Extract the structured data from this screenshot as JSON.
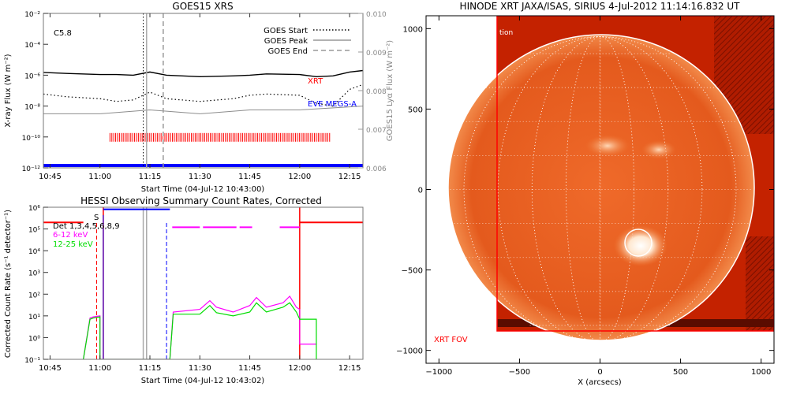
{
  "chart_data": [
    {
      "type": "line",
      "title": "GOES15 XRS",
      "xlabel": "Start Time (04-Jul-12 10:43:00)",
      "ylabel": "X-ray Flux (W m⁻²)",
      "y2label": "GOES15 Lyα Flux (W m⁻²)",
      "xticks": [
        "10:45",
        "11:00",
        "11:15",
        "11:30",
        "11:45",
        "12:00",
        "12:15"
      ],
      "yticks": [
        "10⁻¹²",
        "10⁻¹⁰",
        "10⁻⁸",
        "10⁻⁶",
        "10⁻⁴",
        "10⁻²"
      ],
      "y2ticks": [
        "0.006",
        "0.007",
        "0.008",
        "0.009",
        "0.010"
      ],
      "ylim": [
        1e-12,
        0.01
      ],
      "y2lim": [
        0.006,
        0.01
      ],
      "yscale": "log",
      "xlim": [
        "10:43",
        "12:19"
      ],
      "flare_class": "C5.8",
      "labels": {
        "xrt": "XRT",
        "eve": "EVE MEGS-A"
      },
      "legend": [
        {
          "name": "GOES Start",
          "style": "dotted"
        },
        {
          "name": "GOES Peak",
          "style": "solid"
        },
        {
          "name": "GOES End",
          "style": "dashed"
        }
      ],
      "goes_start": "11:13",
      "goes_peak": "11:14",
      "goes_end": "11:19",
      "series": [
        {
          "x": [
            "10:43",
            "10:50",
            "11:00",
            "11:05",
            "11:10",
            "11:15",
            "11:20",
            "11:30",
            "11:40",
            "11:45",
            "11:50",
            "12:00",
            "12:05",
            "12:10",
            "12:15",
            "12:19"
          ],
          "values": [
            1.5e-06,
            1.3e-06,
            1.1e-06,
            1.1e-06,
            1e-06,
            1.6e-06,
            1e-06,
            8e-07,
            9e-07,
            1e-06,
            1.2e-06,
            1.1e-06,
            8e-07,
            9e-07,
            1.6e-06,
            2e-06
          ]
        },
        {
          "x": [
            "10:43",
            "10:50",
            "11:00",
            "11:05",
            "11:10",
            "11:15",
            "11:20",
            "11:30",
            "11:40",
            "11:45",
            "11:50",
            "12:00",
            "12:05",
            "12:10",
            "12:15",
            "12:19"
          ],
          "values": [
            6e-08,
            4e-08,
            3e-08,
            2e-08,
            2.5e-08,
            8e-08,
            3e-08,
            2e-08,
            3e-08,
            5e-08,
            6e-08,
            5e-08,
            1.5e-08,
            1e-08,
            1.2e-07,
            2.5e-07
          ]
        },
        {
          "x": [
            "10:43",
            "11:00",
            "11:15",
            "11:30",
            "11:45",
            "12:00",
            "12:19"
          ],
          "values": [
            0.0074,
            0.0074,
            0.0075,
            0.0074,
            0.0075,
            0.0075,
            0.0076
          ]
        }
      ],
      "xrt_obs": [
        "11:03",
        "12:09"
      ]
    },
    {
      "type": "line",
      "title": "HESSI Observing Summary Count Rates, Corrected",
      "xlabel": "Start Time (04-Jul-12 10:43:02)",
      "ylabel": "Corrected Count Rate (s⁻¹ detector⁻¹)",
      "xticks": [
        "10:45",
        "11:00",
        "11:15",
        "11:30",
        "11:45",
        "12:00",
        "12:15"
      ],
      "yticks": [
        "10⁻¹",
        "10⁰",
        "10¹",
        "10²",
        "10³",
        "10⁴",
        "10⁵",
        "10⁶"
      ],
      "ylim": [
        0.1,
        1000000.0
      ],
      "yscale": "log",
      "xlim": [
        "10:43",
        "12:19"
      ],
      "det_label": "Det 1,3,4,5,6,8,9",
      "flag_letter": "S",
      "series": [
        {
          "name": "6-12 keV",
          "x": [
            "10:55",
            "10:57",
            "10:58",
            "11:00",
            "11:00",
            "11:21",
            "11:22",
            "11:30",
            "11:33",
            "11:35",
            "11:40",
            "11:45",
            "11:47",
            "11:50",
            "11:55",
            "11:57",
            "11:59",
            "12:00",
            "12:00",
            "12:05"
          ],
          "values": [
            0.1,
            8,
            9,
            10,
            0.1,
            0.1,
            15,
            20,
            50,
            25,
            15,
            30,
            70,
            25,
            40,
            80,
            25,
            20,
            0.5,
            0.5
          ]
        },
        {
          "name": "12-25 keV",
          "x": [
            "10:55",
            "10:57",
            "10:58",
            "11:00",
            "11:00",
            "11:21",
            "11:22",
            "11:30",
            "11:33",
            "11:35",
            "11:40",
            "11:45",
            "11:47",
            "11:50",
            "11:55",
            "11:57",
            "11:59",
            "12:00",
            "12:00",
            "12:05",
            "12:05"
          ],
          "values": [
            0.1,
            7,
            8,
            9,
            0.1,
            0.1,
            12,
            12,
            30,
            14,
            10,
            15,
            40,
            15,
            25,
            40,
            15,
            7,
            7,
            7,
            0.1
          ]
        }
      ],
      "attenuator_state": [
        "10:43",
        "10:55",
        "11:01",
        "11:21",
        "11:30",
        "11:41",
        "11:45",
        "11:54",
        "12:00",
        "12:19"
      ],
      "goes_markers": [
        "10:59",
        "11:01",
        "11:13",
        "11:14",
        "11:20"
      ],
      "eclipse_boundaries": [
        "11:01",
        "12:00"
      ]
    }
  ],
  "image_panel": {
    "title": "HINODE XRT JAXA/ISAS, SIRIUS  4-Jul-2012 11:14:16.832 UT",
    "xlabel": "X (arcsecs)",
    "xticks": [
      "−1000",
      "−500",
      "0",
      "500",
      "1000"
    ],
    "yticks": [
      "1000",
      "500",
      "0",
      "−500",
      "−1000"
    ],
    "xlim": [
      -1080,
      1080
    ],
    "ylim": [
      -1080,
      1080
    ],
    "fov_label": "XRT FOV",
    "corner_text": "tion",
    "solar_radius_arcsec": 950,
    "flare_center_arcsec": [
      230,
      -340
    ],
    "flare_radius_arcsec": 80,
    "fov_arcsec": [
      -650,
      -900,
      1070,
      1070
    ]
  },
  "colors": {
    "flux": "#000000",
    "lyman_alpha": "#8c8c8c",
    "xrt": "#ff0000",
    "eve": "#0000ff",
    "hessi_low": "#ff00ff",
    "hessi_high": "#00dd00",
    "attenuator": "#0000ff",
    "eclipse": "#ff0000",
    "solar_bg": "#c82500",
    "solar_disk": "#e55a1e"
  }
}
